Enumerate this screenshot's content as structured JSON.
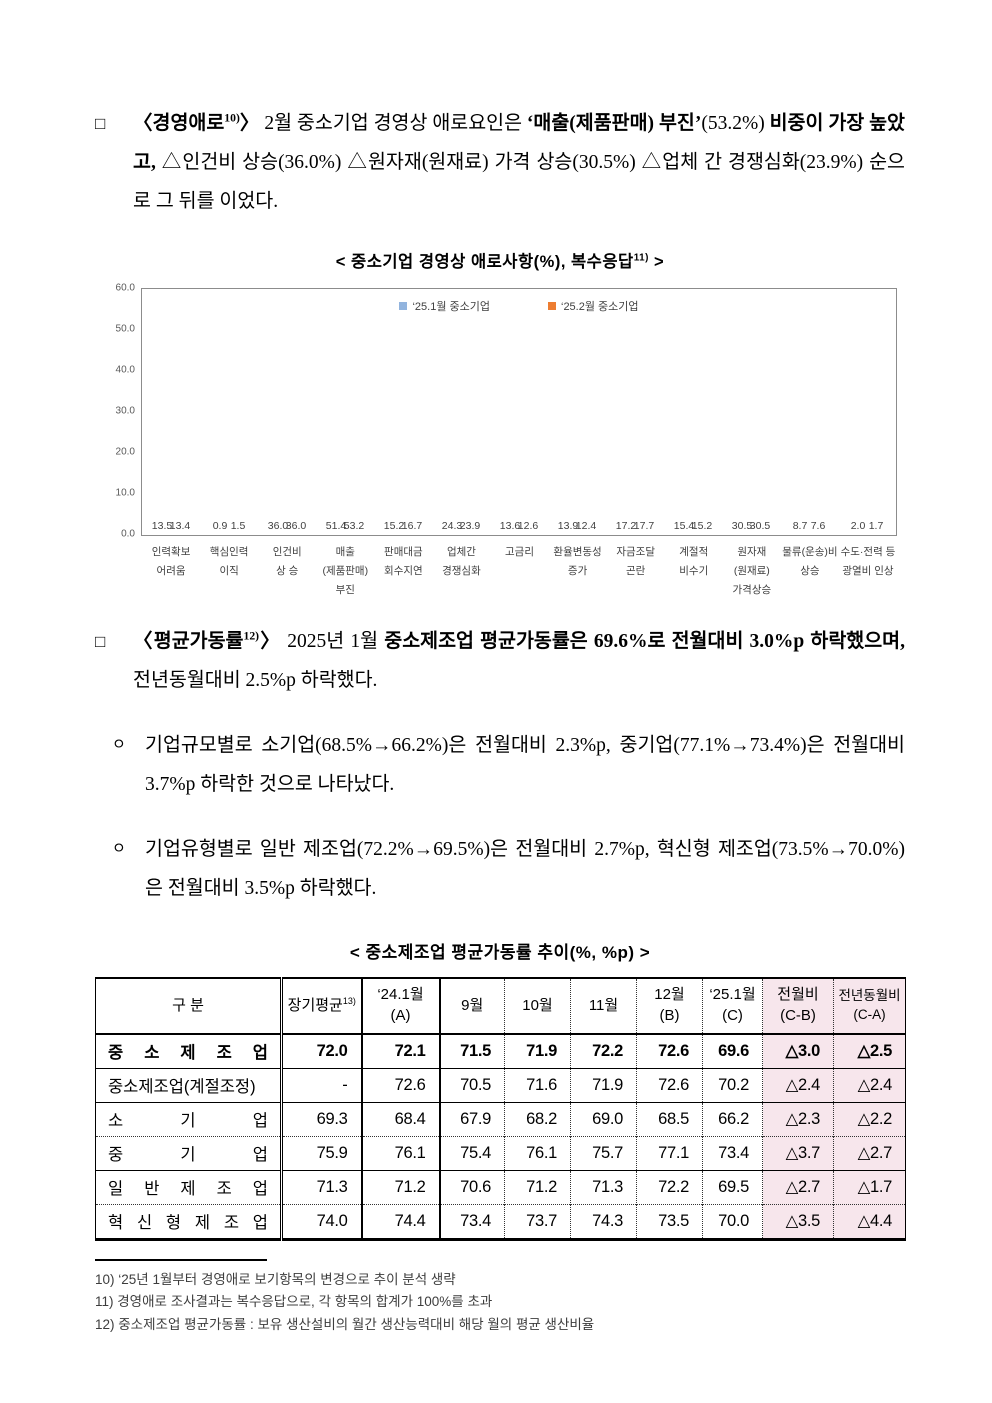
{
  "para1": {
    "marker": "□",
    "segments": [
      {
        "t": "〈경영애로",
        "b": true
      },
      {
        "t": "10)",
        "b": true,
        "sup": true
      },
      {
        "t": "〉 ",
        "b": true
      },
      {
        "t": "2월 중소기업 경영상 애로요인은 "
      },
      {
        "t": "‘매출(제품판매) 부진’",
        "b": true
      },
      {
        "t": "(53.2%) "
      },
      {
        "t": "비중이 가장 높았고, ",
        "b": true
      },
      {
        "t": "△인건비 상승(36.0%) △원자재(원재료) 가격 상승(30.5%) △업체 간 경쟁심화(23.9%) 순으로 그 뒤를 이었다."
      }
    ]
  },
  "chart": {
    "title_segments": [
      {
        "t": "< 중소기업 경영상 애로사항(%), 복수응답",
        "b": true
      },
      {
        "t": "11)",
        "b": true,
        "sup": true
      },
      {
        "t": " >",
        "b": true
      }
    ]
  },
  "chart_data": {
    "type": "bar",
    "title": "< 중소기업 경영상 애로사항(%), 복수응답11) >",
    "categories": [
      "인력확보\n어려움",
      "핵심인력\n이직",
      "인건비\n상 승",
      "매출\n(제품판매)\n부진",
      "판매대금\n회수지연",
      "업체간\n경쟁심화",
      "고금리",
      "환율변동성\n증가",
      "자금조달\n곤란",
      "계절적\n비수기",
      "원자재\n(원재료)\n가격상승",
      "물류(운송)비\n상승",
      "수도·전력 등\n광열비 인상"
    ],
    "series": [
      {
        "name": "‘25.1월 중소기업",
        "color": "#92B4DE",
        "values": [
          13.5,
          0.9,
          36.0,
          51.4,
          15.2,
          24.3,
          13.6,
          13.9,
          17.2,
          15.4,
          30.5,
          8.7,
          2.0
        ]
      },
      {
        "name": "‘25.2월 중소기업",
        "color": "#ED7D31",
        "values": [
          13.4,
          1.5,
          36.0,
          53.2,
          16.7,
          23.9,
          12.6,
          12.4,
          17.7,
          15.2,
          30.5,
          7.6,
          1.7
        ]
      }
    ],
    "ylim": [
      0,
      60
    ],
    "ytick_step": 10,
    "grid": false,
    "legend_position": "top-inside"
  },
  "para2": {
    "marker": "□",
    "segments": [
      {
        "t": "〈평균가동률",
        "b": true
      },
      {
        "t": "12)",
        "b": true,
        "sup": true
      },
      {
        "t": "〉 ",
        "b": true
      },
      {
        "t": "2025년 1월 "
      },
      {
        "t": "중소제조업 평균가동률은 69.6%로 전월대비 3.0%p 하락했으며, ",
        "b": true
      },
      {
        "t": "전년동월대비 2.5%p 하락했다."
      }
    ]
  },
  "bullets": [
    {
      "marker": "ㅇ",
      "text": "기업규모별로 소기업(68.5%→66.2%)은 전월대비 2.3%p, 중기업(77.1%→73.4%)은 전월대비 3.7%p 하락한 것으로 나타났다."
    },
    {
      "marker": "ㅇ",
      "text": "기업유형별로 일반 제조업(72.2%→69.5%)은 전월대비 2.7%p, 혁신형 제조업(73.5%→70.0%)은 전월대비 3.5%p 하락했다."
    }
  ],
  "table": {
    "title": "< 중소제조업 평균가동률 추이(%, %p) >",
    "headers": [
      {
        "lines": [
          "구 분"
        ]
      },
      {
        "lines": [
          "장기평균"
        ],
        "sup": "13)"
      },
      {
        "lines": [
          "‘24.1월",
          "(A)"
        ]
      },
      {
        "lines": [
          "9월"
        ]
      },
      {
        "lines": [
          "10월"
        ]
      },
      {
        "lines": [
          "11월"
        ]
      },
      {
        "lines": [
          "12월",
          "(B)"
        ]
      },
      {
        "lines": [
          "‘25.1월",
          "(C)"
        ]
      },
      {
        "lines": [
          "전월비",
          "(C-B)"
        ],
        "pink": true
      },
      {
        "lines": [
          "전년동월비",
          "(C-A)"
        ],
        "pink": true
      }
    ],
    "rows": [
      {
        "label": "중 소 제 조 업",
        "bold": true,
        "values": [
          "72.0",
          "72.1",
          "71.5",
          "71.9",
          "72.2",
          "72.6",
          "69.6",
          "△3.0",
          "△2.5"
        ]
      },
      {
        "label": "중소제조업(계절조정)",
        "values": [
          "-",
          "72.6",
          "70.5",
          "71.6",
          "71.9",
          "72.6",
          "70.2",
          "△2.4",
          "△2.4"
        ]
      },
      {
        "label": "소 기 업",
        "values": [
          "69.3",
          "68.4",
          "67.9",
          "68.2",
          "69.0",
          "68.5",
          "66.2",
          "△2.3",
          "△2.2"
        ]
      },
      {
        "label": "중 기 업",
        "values": [
          "75.9",
          "76.1",
          "75.4",
          "76.1",
          "75.7",
          "77.1",
          "73.4",
          "△3.7",
          "△2.7"
        ]
      },
      {
        "label": "일 반 제 조 업",
        "values": [
          "71.3",
          "71.2",
          "70.6",
          "71.2",
          "71.3",
          "72.2",
          "69.5",
          "△2.7",
          "△1.7"
        ]
      },
      {
        "label": "혁 신 형  제 조 업",
        "values": [
          "74.0",
          "74.4",
          "73.4",
          "73.7",
          "74.3",
          "73.5",
          "70.0",
          "△3.5",
          "△4.4"
        ]
      }
    ]
  },
  "footnotes": [
    "10) ‘25년 1월부터 경영애로 보기항목의 변경으로 추이 분석 생략",
    "11) 경영애로 조사결과는 복수응답으로, 각 항목의 합계가 100%를 초과",
    "12) 중소제조업 평균가동률 : 보유 생산설비의 월간 생산능력대비 해당 월의 평균 생산비율"
  ]
}
